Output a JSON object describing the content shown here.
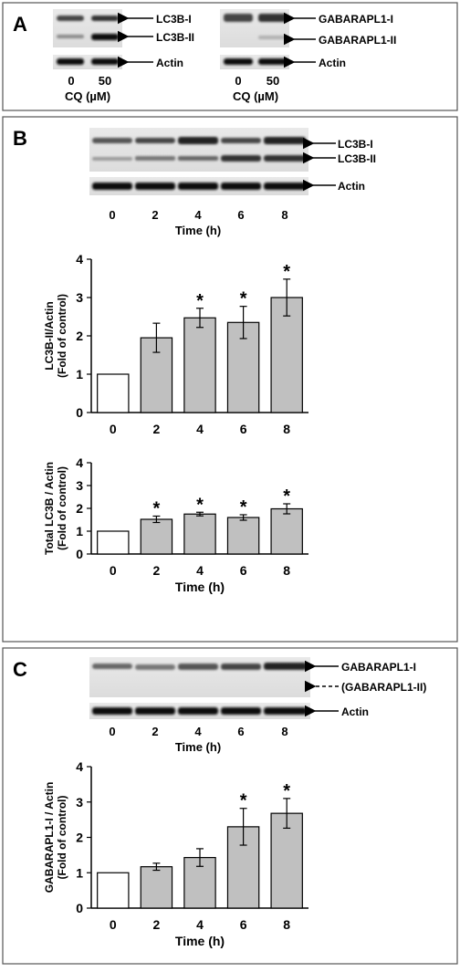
{
  "panelA": {
    "letter": "A",
    "blot_left": {
      "bands": [
        "LC3B-I",
        "LC3B-II"
      ],
      "loading": "Actin",
      "lanes": [
        "0",
        "50"
      ],
      "treatment": "CQ (µM)"
    },
    "blot_right": {
      "bands": [
        "GABARAPL1-I",
        "GABARAPL1-II"
      ],
      "loading": "Actin",
      "lanes": [
        "0",
        "50"
      ],
      "treatment": "CQ (µM)"
    }
  },
  "panelB": {
    "letter": "B",
    "blot": {
      "bands": [
        "LC3B-I",
        "LC3B-II"
      ],
      "loading": "Actin",
      "lanes": [
        "0",
        "2",
        "4",
        "6",
        "8"
      ],
      "xlabel": "Time (h)"
    }
  },
  "panelC": {
    "letter": "C",
    "blot": {
      "bands": [
        "GABARAPL1-I",
        "(GABARAPL1-II)"
      ],
      "loading": "Actin",
      "lanes": [
        "0",
        "2",
        "4",
        "6",
        "8"
      ],
      "xlabel": "Time (h)"
    }
  },
  "colors": {
    "control_bar": "#ffffff",
    "treated_bar": "#c0c0c0",
    "outline": "#000000",
    "frame": "#555555"
  },
  "chart_data": [
    {
      "type": "bar",
      "categories": [
        "0",
        "2",
        "4",
        "6",
        "8"
      ],
      "values": [
        1.0,
        1.95,
        2.47,
        2.35,
        3.0
      ],
      "errors": [
        0,
        0.38,
        0.25,
        0.42,
        0.48
      ],
      "significant": [
        false,
        false,
        true,
        true,
        true
      ],
      "ylim": [
        0,
        4
      ],
      "yticks": [
        "0",
        "1",
        "2",
        "3",
        "4"
      ],
      "ylabel_line1": "LC3B-II/Actin",
      "ylabel_line2": "(Fold of control)",
      "xlabel": ""
    },
    {
      "type": "bar",
      "categories": [
        "0",
        "2",
        "4",
        "6",
        "8"
      ],
      "values": [
        1.0,
        1.52,
        1.75,
        1.6,
        1.98
      ],
      "errors": [
        0,
        0.14,
        0.08,
        0.12,
        0.22
      ],
      "significant": [
        false,
        true,
        true,
        true,
        true
      ],
      "ylim": [
        0,
        4
      ],
      "yticks": [
        "0",
        "1",
        "2",
        "3",
        "4"
      ],
      "ylabel_line1": "Total LC3B / Actin",
      "ylabel_line2": "(Fold of control)",
      "xlabel": "Time (h)"
    },
    {
      "type": "bar",
      "categories": [
        "0",
        "2",
        "4",
        "6",
        "8"
      ],
      "values": [
        1.0,
        1.17,
        1.43,
        2.3,
        2.68
      ],
      "errors": [
        0,
        0.1,
        0.25,
        0.52,
        0.42
      ],
      "significant": [
        false,
        false,
        false,
        true,
        true
      ],
      "ylim": [
        0,
        4
      ],
      "yticks": [
        "0",
        "1",
        "2",
        "3",
        "4"
      ],
      "ylabel_line1": "GABARAPL1-I / Actin",
      "ylabel_line2": "(Fold of control)",
      "xlabel": "Time (h)"
    }
  ]
}
